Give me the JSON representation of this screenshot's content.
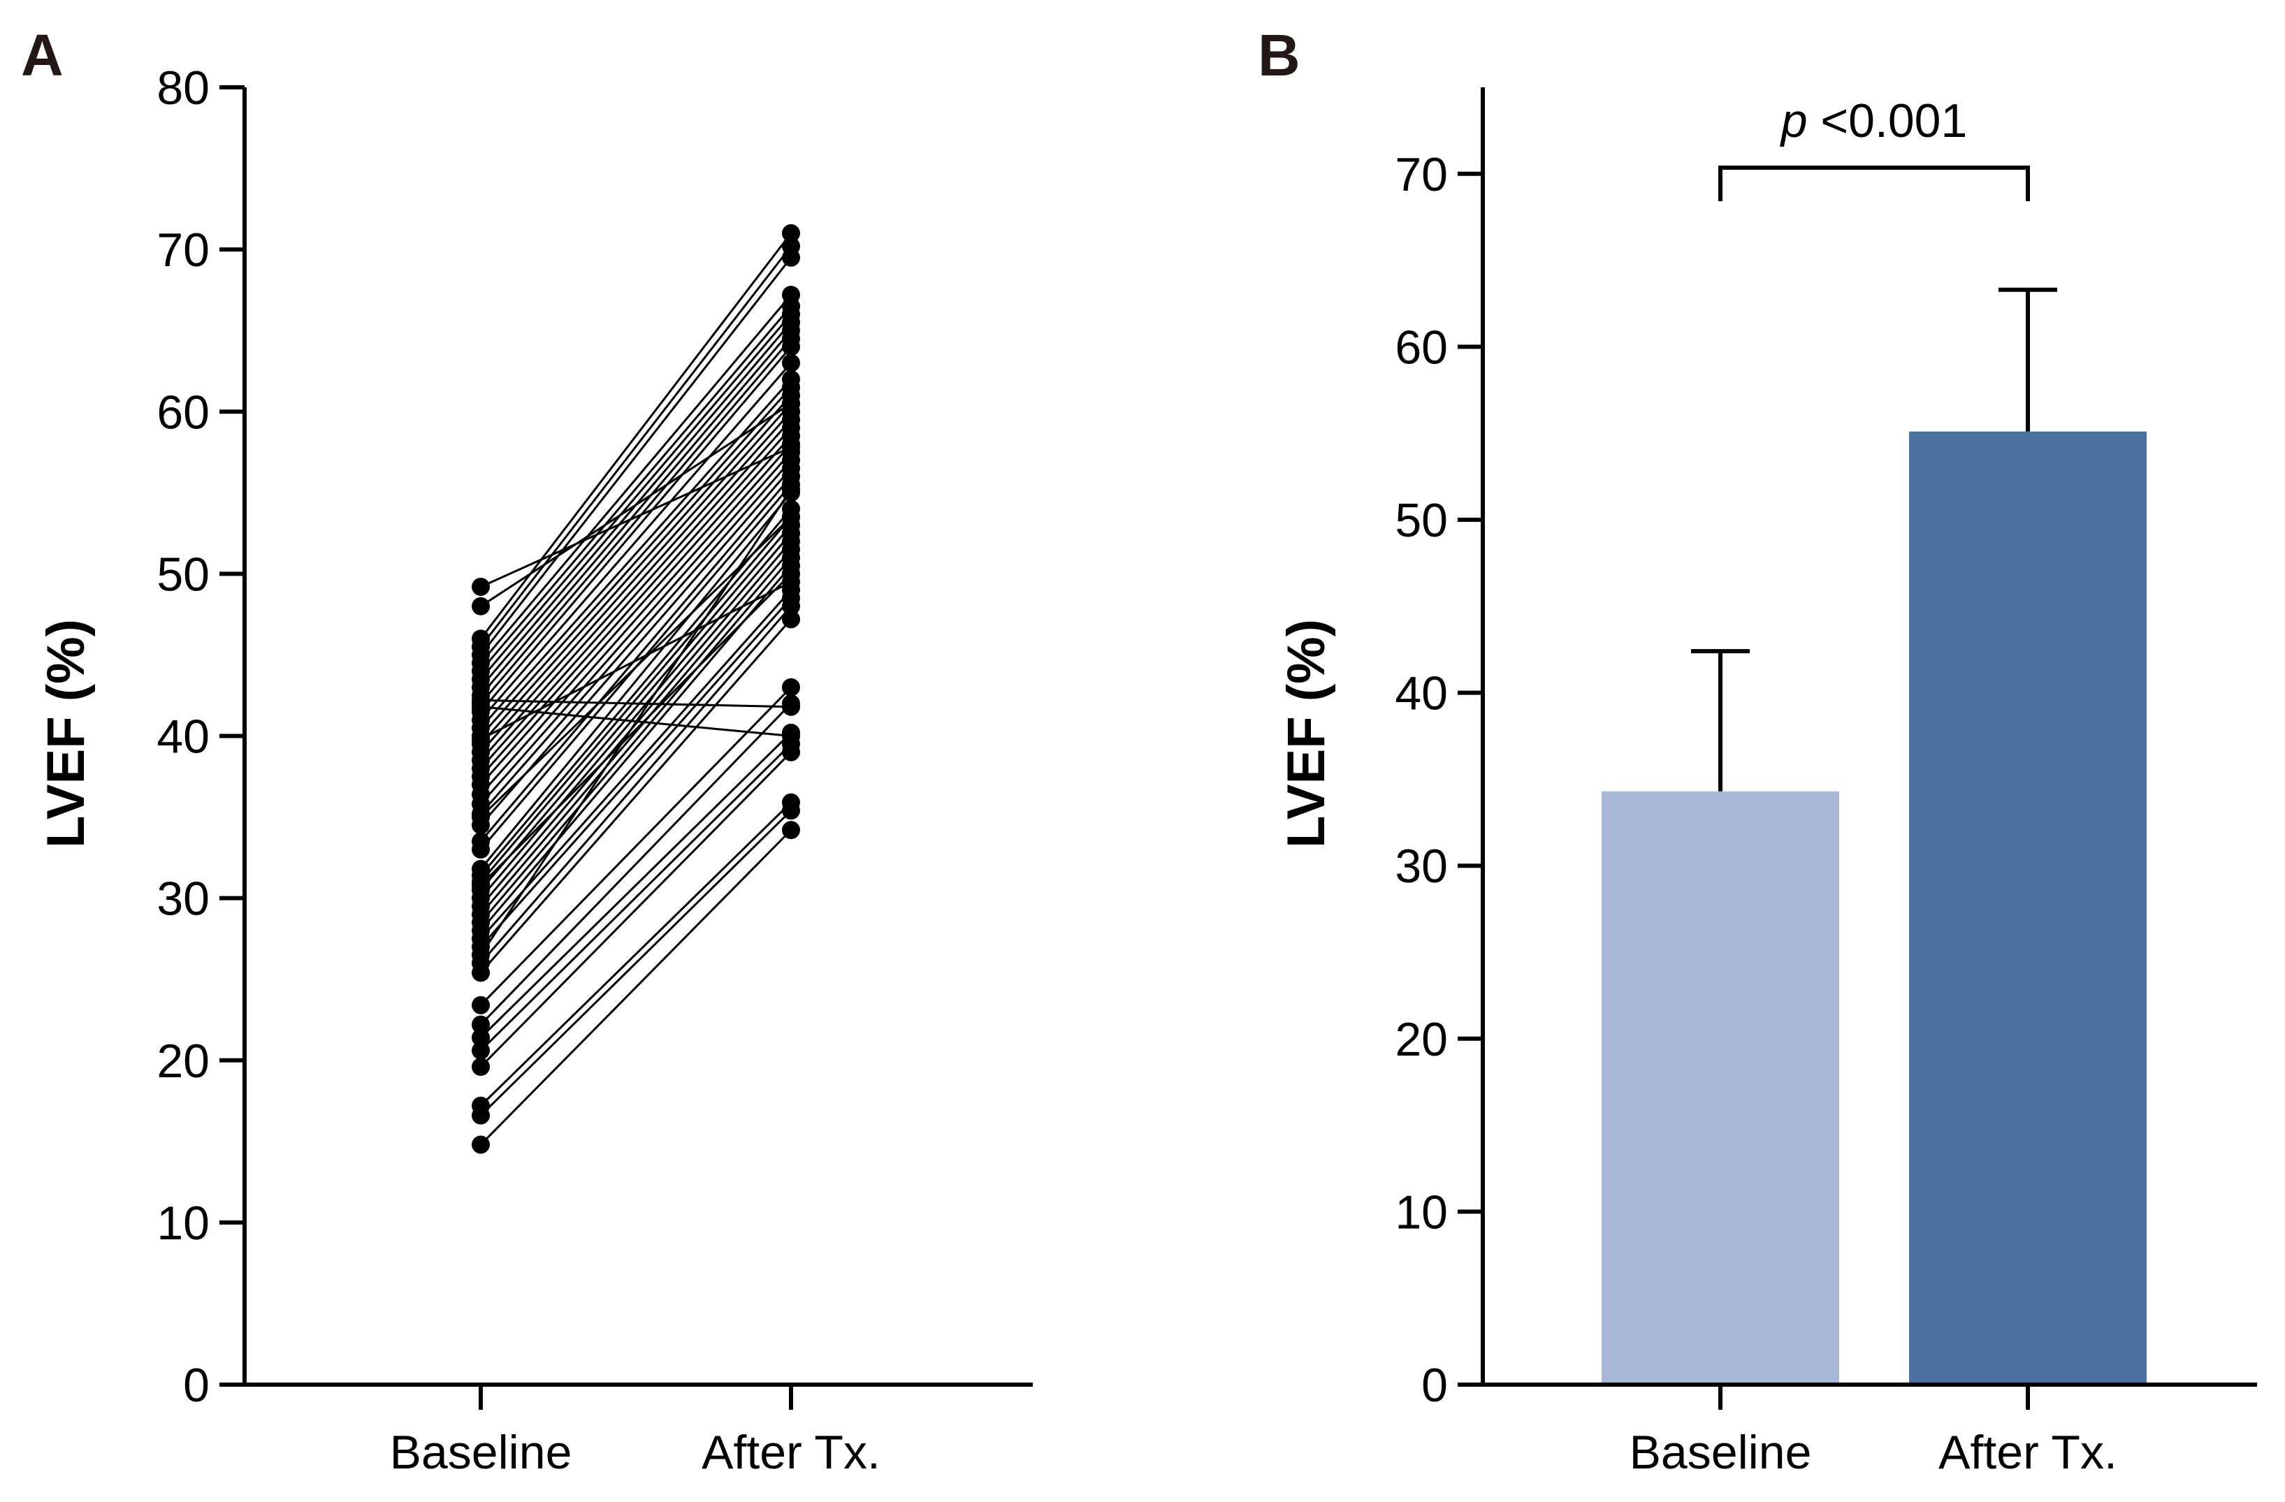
{
  "chart_data": [
    {
      "panel": "A",
      "type": "line",
      "ylabel": "LVEF (%)",
      "categories": [
        "Baseline",
        "After Tx."
      ],
      "ylim": [
        0,
        80
      ],
      "yticks": [
        0,
        10,
        20,
        30,
        40,
        50,
        60,
        70,
        80
      ],
      "pairs": [
        [
          14.8,
          34.2
        ],
        [
          16.6,
          35.4
        ],
        [
          17.2,
          35.9
        ],
        [
          19.6,
          39.0
        ],
        [
          20.6,
          39.5
        ],
        [
          21.4,
          40.2
        ],
        [
          22.2,
          42.0
        ],
        [
          23.4,
          43.0
        ],
        [
          25.4,
          47.2
        ],
        [
          26.0,
          48.0
        ],
        [
          27.0,
          48.5
        ],
        [
          27.5,
          49.0
        ],
        [
          28.0,
          50.5
        ],
        [
          28.5,
          51.0
        ],
        [
          29.0,
          51.5
        ],
        [
          29.5,
          52.0
        ],
        [
          30.0,
          52.5
        ],
        [
          30.5,
          53.0
        ],
        [
          31.0,
          53.5
        ],
        [
          31.4,
          54.0
        ],
        [
          31.8,
          55.0
        ],
        [
          33.0,
          55.5
        ],
        [
          33.5,
          56.0
        ],
        [
          34.5,
          56.5
        ],
        [
          35.2,
          57.0
        ],
        [
          35.8,
          57.5
        ],
        [
          36.4,
          58.0
        ],
        [
          37.0,
          58.5
        ],
        [
          37.5,
          59.0
        ],
        [
          38.0,
          59.5
        ],
        [
          38.5,
          60.0
        ],
        [
          39.0,
          60.5
        ],
        [
          39.5,
          61.0
        ],
        [
          40.0,
          61.5
        ],
        [
          40.5,
          62.0
        ],
        [
          41.0,
          63.0
        ],
        [
          41.5,
          64.0
        ],
        [
          42.0,
          64.5
        ],
        [
          42.2,
          41.8
        ],
        [
          42.5,
          65.0
        ],
        [
          43.0,
          65.5
        ],
        [
          43.5,
          66.0
        ],
        [
          44.0,
          66.5
        ],
        [
          44.5,
          67.2
        ],
        [
          45.0,
          69.5
        ],
        [
          45.5,
          70.2
        ],
        [
          46.0,
          71.0
        ],
        [
          48.0,
          60.5
        ],
        [
          49.2,
          57.8
        ],
        [
          26.5,
          55.2
        ],
        [
          30.8,
          50.0
        ],
        [
          35.0,
          53.5
        ],
        [
          41.8,
          40.0
        ],
        [
          39.8,
          49.5
        ]
      ]
    },
    {
      "panel": "B",
      "type": "bar",
      "ylabel": "LVEF (%)",
      "categories": [
        "Baseline",
        "After Tx."
      ],
      "values": [
        34.3,
        55.1
      ],
      "error_upper": [
        42.4,
        63.3
      ],
      "ylim": [
        0,
        75
      ],
      "yticks": [
        0,
        10,
        20,
        30,
        40,
        50,
        60,
        70
      ],
      "colors": [
        "#a7b9d6",
        "#4a719f"
      ],
      "significance": {
        "p_italic": "p",
        "p_rest": " <0.001"
      }
    }
  ]
}
